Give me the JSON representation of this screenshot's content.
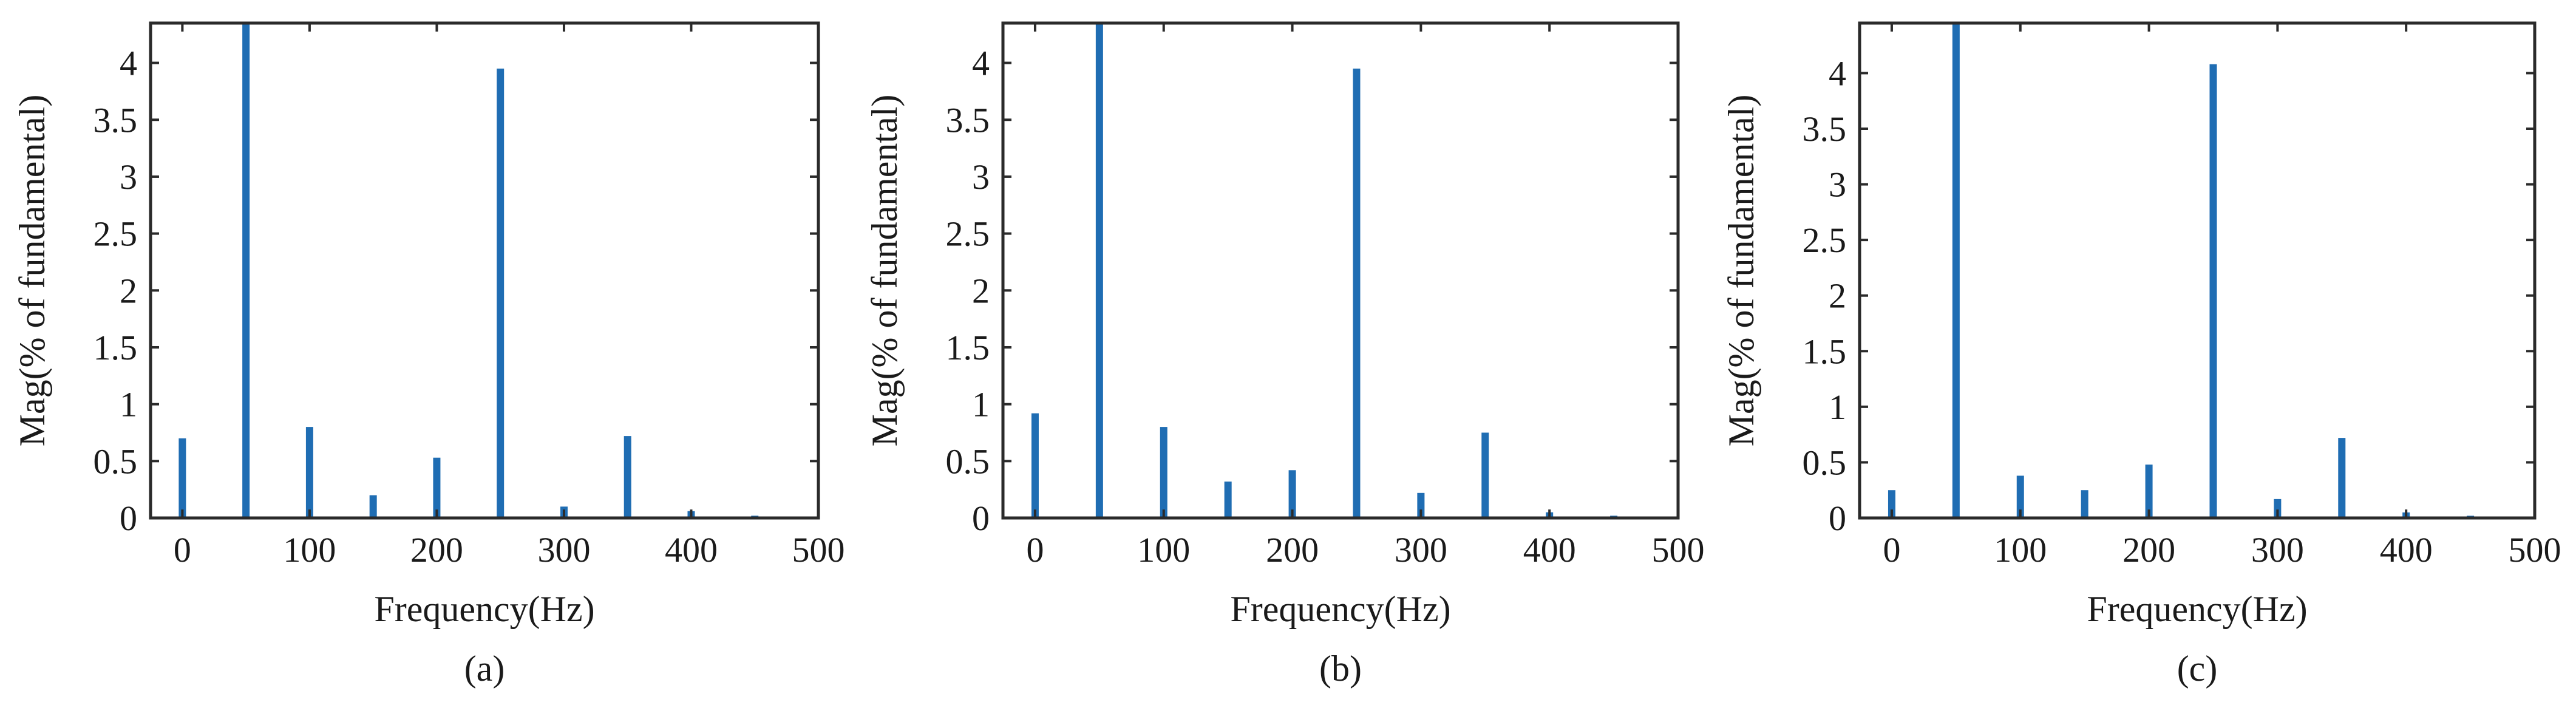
{
  "colors": {
    "bar": "#1f6db3",
    "axis": "#2a2a2a",
    "background": "#ffffff"
  },
  "chart_data": [
    {
      "type": "bar",
      "caption": "(a)",
      "xlabel": "Frequency(Hz)",
      "ylabel": "Mag(% of fundamental)",
      "xlim": [
        -25,
        500
      ],
      "ylim": [
        0,
        4.35
      ],
      "xticks": [
        0,
        100,
        200,
        300,
        400,
        500
      ],
      "yticks": [
        0,
        0.5,
        1,
        1.5,
        2,
        2.5,
        3,
        3.5,
        4
      ],
      "grid": false,
      "x": [
        0,
        50,
        100,
        150,
        200,
        250,
        300,
        350,
        400,
        450
      ],
      "values": [
        0.7,
        4.35,
        0.8,
        0.2,
        0.53,
        3.95,
        0.1,
        0.72,
        0.06,
        0.02
      ]
    },
    {
      "type": "bar",
      "caption": "(b)",
      "xlabel": "Frequency(Hz)",
      "ylabel": "Mag(% of fundamental)",
      "xlim": [
        -25,
        500
      ],
      "ylim": [
        0,
        4.35
      ],
      "xticks": [
        0,
        100,
        200,
        300,
        400,
        500
      ],
      "yticks": [
        0,
        0.5,
        1,
        1.5,
        2,
        2.5,
        3,
        3.5,
        4
      ],
      "grid": false,
      "x": [
        0,
        50,
        100,
        150,
        200,
        250,
        300,
        350,
        400,
        450
      ],
      "values": [
        0.92,
        4.35,
        0.8,
        0.32,
        0.42,
        3.95,
        0.22,
        0.75,
        0.05,
        0.02
      ]
    },
    {
      "type": "bar",
      "caption": "(c)",
      "xlabel": "Frequency(Hz)",
      "ylabel": "Mag(% of fundamental)",
      "xlim": [
        -25,
        500
      ],
      "ylim": [
        0,
        4.45
      ],
      "xticks": [
        0,
        100,
        200,
        300,
        400,
        500
      ],
      "yticks": [
        0,
        0.5,
        1,
        1.5,
        2,
        2.5,
        3,
        3.5,
        4
      ],
      "grid": false,
      "x": [
        0,
        50,
        100,
        150,
        200,
        250,
        300,
        350,
        400,
        450
      ],
      "values": [
        0.25,
        4.45,
        0.38,
        0.25,
        0.48,
        4.08,
        0.17,
        0.72,
        0.05,
        0.02
      ]
    }
  ]
}
